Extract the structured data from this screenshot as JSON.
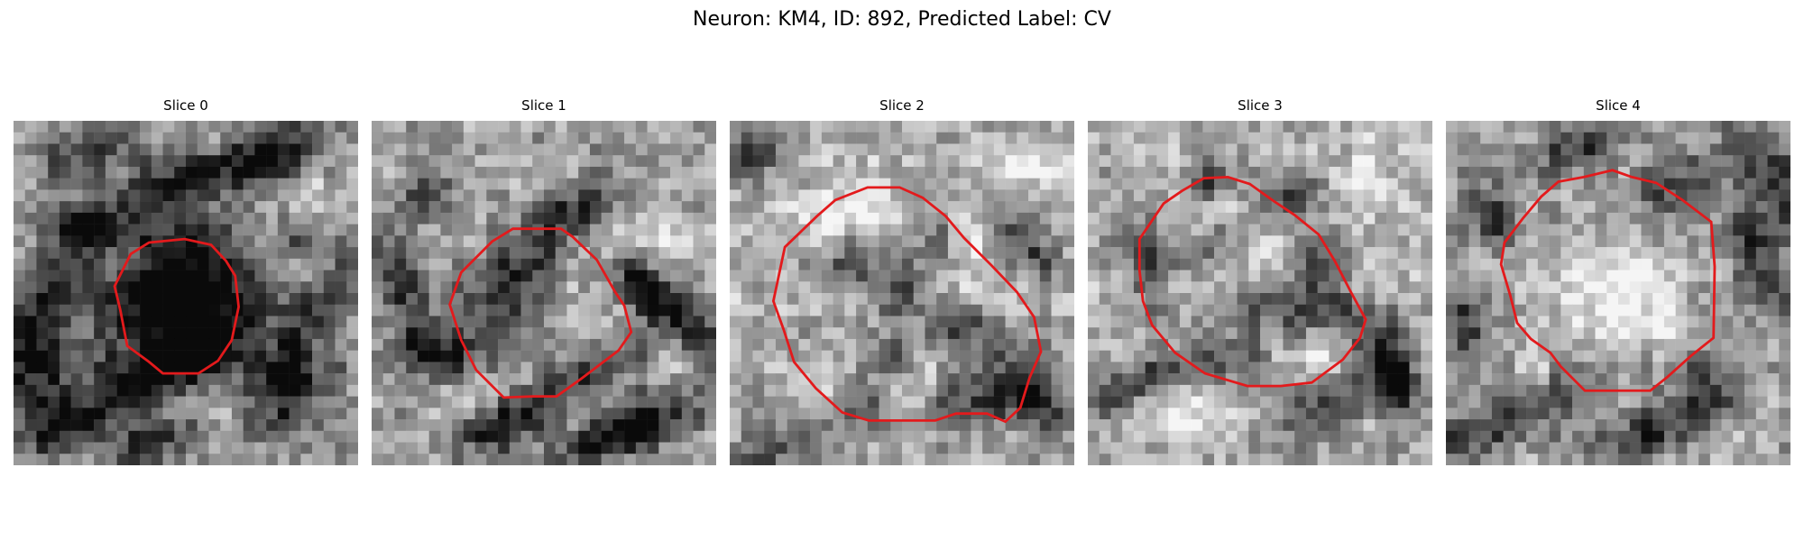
{
  "figure": {
    "title": "Neuron: KM4, ID: 892, Predicted Label: CV",
    "background_color": "#ffffff",
    "contour_color": "#e31a1c",
    "image_style": "grayscale electron-microscopy patch, roughly 30x30 pixels per slice"
  },
  "panels": [
    {
      "title": "Slice 0",
      "image": "gray-patch-slice-0",
      "contour": "small dark cell outline"
    },
    {
      "title": "Slice 1",
      "image": "gray-patch-slice-1",
      "contour": "oblique cell outline"
    },
    {
      "title": "Slice 2",
      "image": "gray-patch-slice-2",
      "contour": "large round cell outline"
    },
    {
      "title": "Slice 3",
      "image": "gray-patch-slice-3",
      "contour": "medium round cell outline"
    },
    {
      "title": "Slice 4",
      "image": "gray-patch-slice-4",
      "contour": "bright cell outline"
    }
  ]
}
